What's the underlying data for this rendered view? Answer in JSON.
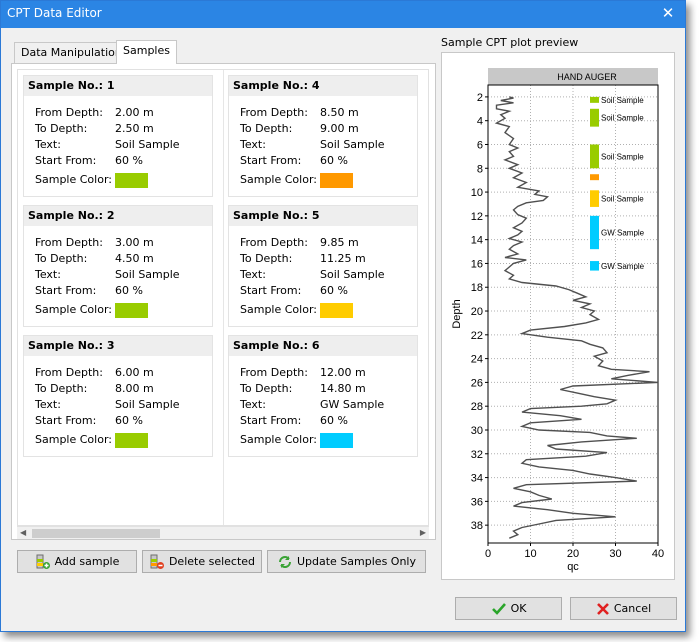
{
  "window": {
    "title": "CPT Data Editor",
    "close_label": "✕"
  },
  "tabs": [
    {
      "label": "Data Manipulation",
      "active": false
    },
    {
      "label": "Samples",
      "active": true
    }
  ],
  "field_labels": {
    "from_depth": "From Depth:",
    "to_depth": "To Depth:",
    "text": "Text:",
    "start_from": "Start From:",
    "sample_color": "Sample Color:"
  },
  "samples": [
    {
      "header": "Sample No.: 1",
      "from_depth": "2.00 m",
      "to_depth": "2.50 m",
      "text": "Soil Sample",
      "start_from": "60 %",
      "color": "#99cc00"
    },
    {
      "header": "Sample No.: 2",
      "from_depth": "3.00 m",
      "to_depth": "4.50 m",
      "text": "Soil Sample",
      "start_from": "60 %",
      "color": "#99cc00"
    },
    {
      "header": "Sample No.: 3",
      "from_depth": "6.00 m",
      "to_depth": "8.00 m",
      "text": "Soil Sample",
      "start_from": "60 %",
      "color": "#99cc00"
    },
    {
      "header": "Sample No.: 4",
      "from_depth": "8.50 m",
      "to_depth": "9.00 m",
      "text": "Soil Sample",
      "start_from": "60 %",
      "color": "#ff9900"
    },
    {
      "header": "Sample No.: 5",
      "from_depth": "9.85 m",
      "to_depth": "11.25 m",
      "text": "Soil Sample",
      "start_from": "60 %",
      "color": "#ffcc00"
    },
    {
      "header": "Sample No.: 6",
      "from_depth": "12.00 m",
      "to_depth": "14.80 m",
      "text": "GW Sample",
      "start_from": "60 %",
      "color": "#00ccff"
    }
  ],
  "buttons": {
    "add": "Add sample",
    "delete": "Delete selected",
    "update": "Update Samples Only",
    "ok": "OK",
    "cancel": "Cancel"
  },
  "icons": {
    "add": "add-sample-icon",
    "delete": "delete-sample-icon",
    "update": "refresh-icon",
    "ok": "checkmark-icon",
    "cancel": "cross-icon"
  },
  "preview": {
    "label": "Sample CPT plot preview"
  },
  "chart_data": {
    "type": "line",
    "xlabel": "qc",
    "ylabel": "Depth",
    "header_label": "HAND AUGER",
    "xlim": [
      0,
      40
    ],
    "ylim": [
      1,
      39.5
    ],
    "y_inverted": true,
    "grid": true,
    "x_ticks": [
      0,
      10,
      20,
      30,
      40
    ],
    "y_ticks": [
      2,
      4,
      6,
      8,
      10,
      12,
      14,
      16,
      18,
      20,
      22,
      24,
      26,
      28,
      30,
      32,
      34,
      36,
      38
    ],
    "sample_bars": [
      {
        "from": 2.0,
        "to": 2.5,
        "label": "Soil Sample",
        "color": "#99cc00",
        "x": 24
      },
      {
        "from": 3.0,
        "to": 4.5,
        "label": "Soil Sample",
        "color": "#99cc00",
        "x": 24
      },
      {
        "from": 6.0,
        "to": 8.0,
        "label": "Soil Sample",
        "color": "#99cc00",
        "x": 24
      },
      {
        "from": 8.5,
        "to": 9.0,
        "label": "",
        "color": "#ff9900",
        "x": 24
      },
      {
        "from": 9.85,
        "to": 11.25,
        "label": "Soil Sample",
        "color": "#ffcc00",
        "x": 24
      },
      {
        "from": 12.0,
        "to": 14.8,
        "label": "GW Sample",
        "color": "#00ccff",
        "x": 24
      },
      {
        "from": 15.8,
        "to": 16.6,
        "label": "GW Sample",
        "color": "#00ccff",
        "x": 24
      }
    ],
    "series": [
      {
        "color": "#505050",
        "points": [
          [
            5,
            2
          ],
          [
            6,
            2.1
          ],
          [
            3,
            2.3
          ],
          [
            6,
            2.5
          ],
          [
            2,
            2.7
          ],
          [
            2,
            3.0
          ],
          [
            5,
            3.2
          ],
          [
            3,
            3.5
          ],
          [
            4,
            3.8
          ],
          [
            2,
            4.2
          ],
          [
            5,
            4.5
          ],
          [
            4,
            5.0
          ],
          [
            6,
            5.5
          ],
          [
            5,
            6.0
          ],
          [
            7,
            6.3
          ],
          [
            5,
            6.6
          ],
          [
            6,
            7.0
          ],
          [
            4,
            7.3
          ],
          [
            7,
            7.7
          ],
          [
            5,
            8.0
          ],
          [
            8,
            8.4
          ],
          [
            6,
            8.8
          ],
          [
            9,
            9.2
          ],
          [
            7,
            9.6
          ],
          [
            12,
            9.9
          ],
          [
            11,
            10.2
          ],
          [
            14,
            10.4
          ],
          [
            13,
            10.7
          ],
          [
            9,
            10.9
          ],
          [
            7,
            11.2
          ],
          [
            6,
            11.5
          ],
          [
            7,
            11.9
          ],
          [
            9,
            12.2
          ],
          [
            8,
            12.6
          ],
          [
            6,
            13.0
          ],
          [
            8,
            13.3
          ],
          [
            7,
            13.6
          ],
          [
            5,
            13.9
          ],
          [
            8,
            14.2
          ],
          [
            6,
            14.5
          ],
          [
            5,
            14.8
          ],
          [
            7,
            15.2
          ],
          [
            4,
            15.5
          ],
          [
            9,
            15.7
          ],
          [
            6,
            16.0
          ],
          [
            5,
            16.3
          ],
          [
            4,
            16.6
          ],
          [
            6,
            17.0
          ],
          [
            5,
            17.3
          ],
          [
            8,
            17.6
          ],
          [
            16,
            17.9
          ],
          [
            19,
            18.2
          ],
          [
            21,
            18.5
          ],
          [
            23,
            18.8
          ],
          [
            20,
            19.1
          ],
          [
            24,
            19.4
          ],
          [
            22,
            19.7
          ],
          [
            25,
            20.0
          ],
          [
            24,
            20.3
          ],
          [
            26,
            20.7
          ],
          [
            23,
            21.0
          ],
          [
            18,
            21.3
          ],
          [
            10,
            21.6
          ],
          [
            8,
            21.9
          ],
          [
            14,
            22.2
          ],
          [
            22,
            22.5
          ],
          [
            24,
            22.8
          ],
          [
            27,
            23.1
          ],
          [
            28,
            23.5
          ],
          [
            25,
            23.8
          ],
          [
            27,
            24.2
          ],
          [
            26,
            24.6
          ],
          [
            29,
            24.9
          ],
          [
            38,
            25.1
          ],
          [
            33,
            25.4
          ],
          [
            29,
            25.7
          ],
          [
            40,
            26.0
          ],
          [
            20,
            26.3
          ],
          [
            17,
            26.6
          ],
          [
            21,
            26.9
          ],
          [
            25,
            27.2
          ],
          [
            30,
            27.5
          ],
          [
            28,
            27.8
          ],
          [
            22,
            28.0
          ],
          [
            10,
            28.2
          ],
          [
            8,
            28.5
          ],
          [
            17,
            28.8
          ],
          [
            22,
            29.1
          ],
          [
            10,
            29.4
          ],
          [
            8,
            29.7
          ],
          [
            12,
            30.0
          ],
          [
            24,
            30.2
          ],
          [
            28,
            30.5
          ],
          [
            35,
            30.7
          ],
          [
            22,
            31.0
          ],
          [
            14,
            31.3
          ],
          [
            16,
            31.6
          ],
          [
            28,
            31.9
          ],
          [
            23,
            32.2
          ],
          [
            9,
            32.5
          ],
          [
            8,
            32.8
          ],
          [
            12,
            33.1
          ],
          [
            20,
            33.4
          ],
          [
            24,
            33.7
          ],
          [
            30,
            34.0
          ],
          [
            35,
            34.3
          ],
          [
            9,
            34.6
          ],
          [
            6,
            34.9
          ],
          [
            10,
            35.2
          ],
          [
            12,
            35.5
          ],
          [
            15,
            35.8
          ],
          [
            8,
            36.1
          ],
          [
            6,
            36.4
          ],
          [
            14,
            36.7
          ],
          [
            20,
            37.0
          ],
          [
            30,
            37.3
          ],
          [
            16,
            37.6
          ],
          [
            12,
            37.9
          ],
          [
            8,
            38.2
          ],
          [
            6,
            38.5
          ],
          [
            7,
            38.8
          ],
          [
            5,
            39.1
          ]
        ]
      }
    ]
  }
}
